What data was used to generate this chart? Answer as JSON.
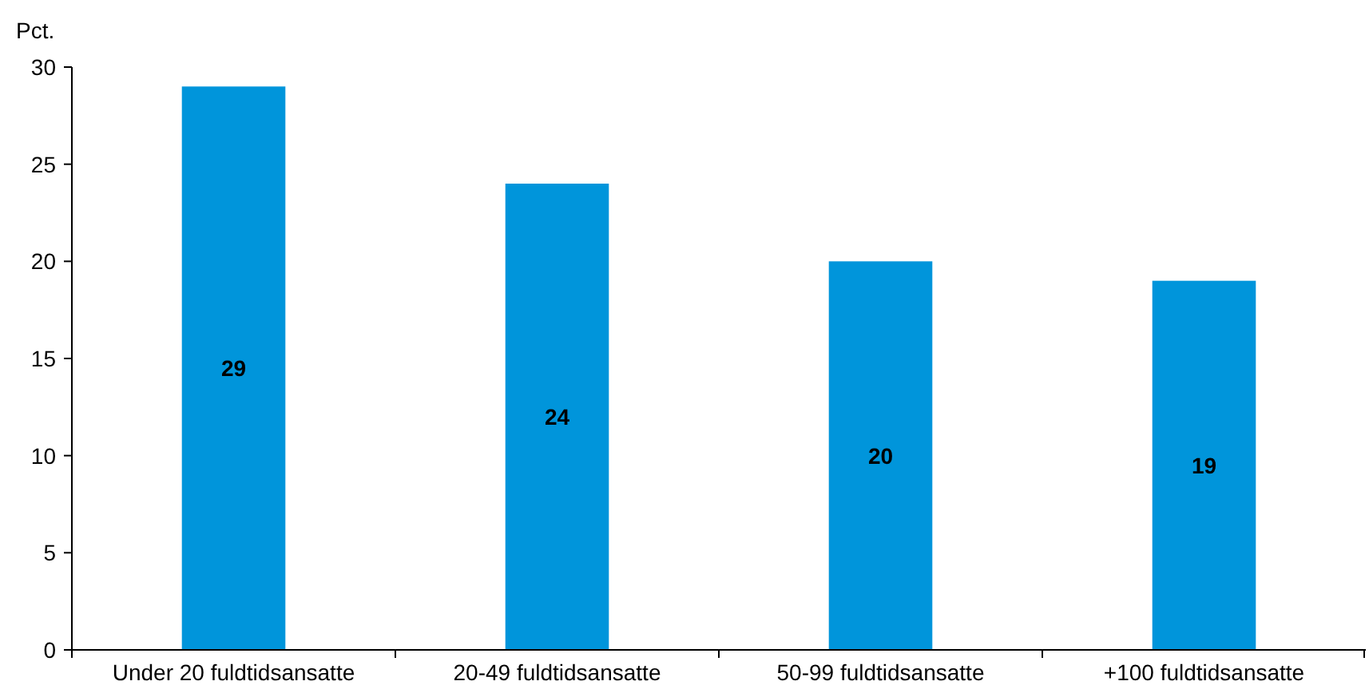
{
  "chart_data": {
    "type": "bar",
    "ylabel": "Pct.",
    "categories": [
      "Under 20 fuldtidsansatte",
      "20-49 fuldtidsansatte",
      "50-99 fuldtidsansatte",
      "+100 fuldtidsansatte"
    ],
    "values": [
      29,
      24,
      20,
      19
    ],
    "color": "#0095db",
    "ylim": [
      0,
      30
    ],
    "yticks": [
      0,
      5,
      10,
      15,
      20,
      25,
      30
    ],
    "data_labels": true
  }
}
